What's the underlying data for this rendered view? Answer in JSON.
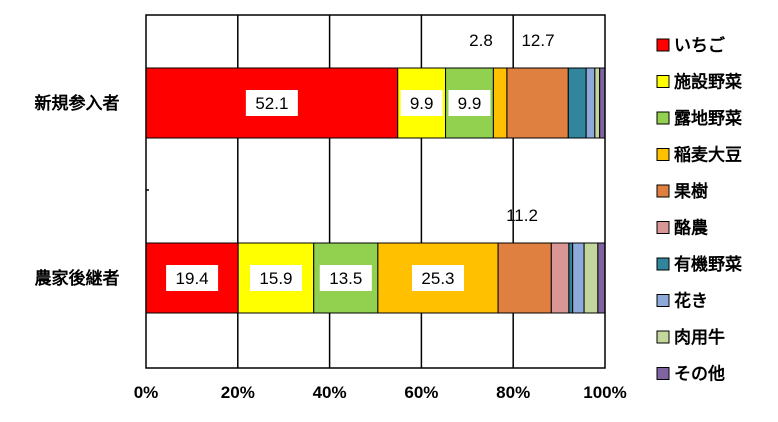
{
  "chart_data": {
    "type": "bar",
    "orientation": "horizontal",
    "stacked": "percent",
    "categories": [
      "新規参入者",
      "農家後継者"
    ],
    "series": [
      {
        "name": "いちご",
        "color": "#ff0000",
        "values": [
          52.1,
          19.4
        ]
      },
      {
        "name": "施設野菜",
        "color": "#ffff00",
        "values": [
          9.9,
          15.9
        ]
      },
      {
        "name": "露地野菜",
        "color": "#92d050",
        "values": [
          9.9,
          13.5
        ]
      },
      {
        "name": "稲麦大豆",
        "color": "#ffc000",
        "values": [
          2.8,
          25.3
        ]
      },
      {
        "name": "果樹",
        "color": "#e08040",
        "values": [
          12.7,
          11.2
        ]
      },
      {
        "name": "酪農",
        "color": "#d99694",
        "values": [
          0.0,
          3.7
        ]
      },
      {
        "name": "有機野菜",
        "color": "#31859c",
        "values": [
          3.7,
          0.8
        ]
      },
      {
        "name": "花き",
        "color": "#8eaadb",
        "values": [
          1.8,
          2.4
        ]
      },
      {
        "name": "肉用牛",
        "color": "#c3d69b",
        "values": [
          1.0,
          2.9
        ]
      },
      {
        "name": "その他",
        "color": "#8064a2",
        "values": [
          1.1,
          1.5
        ]
      }
    ],
    "data_labels": [
      {
        "category": "新規参入者",
        "series": "いちご",
        "text": "52.1",
        "boxed": true
      },
      {
        "category": "新規参入者",
        "series": "施設野菜",
        "text": "9.9",
        "boxed": true
      },
      {
        "category": "新規参入者",
        "series": "露地野菜",
        "text": "9.9",
        "boxed": true
      },
      {
        "category": "新規参入者",
        "series": "稲麦大豆",
        "text": "2.8",
        "boxed": false
      },
      {
        "category": "新規参入者",
        "series": "果樹",
        "text": "12.7",
        "boxed": false
      },
      {
        "category": "農家後継者",
        "series": "いちご",
        "text": "19.4",
        "boxed": true
      },
      {
        "category": "農家後継者",
        "series": "施設野菜",
        "text": "15.9",
        "boxed": true
      },
      {
        "category": "農家後継者",
        "series": "露地野菜",
        "text": "13.5",
        "boxed": true
      },
      {
        "category": "農家後継者",
        "series": "稲麦大豆",
        "text": "25.3",
        "boxed": true
      },
      {
        "category": "農家後継者",
        "series": "果樹",
        "text": "11.2",
        "boxed": false
      }
    ],
    "xticks": [
      "0%",
      "20%",
      "40%",
      "60%",
      "80%",
      "100%"
    ],
    "xlim": [
      0,
      100
    ],
    "title": "",
    "xlabel": "",
    "ylabel": "",
    "grid": true,
    "legend": "right"
  }
}
